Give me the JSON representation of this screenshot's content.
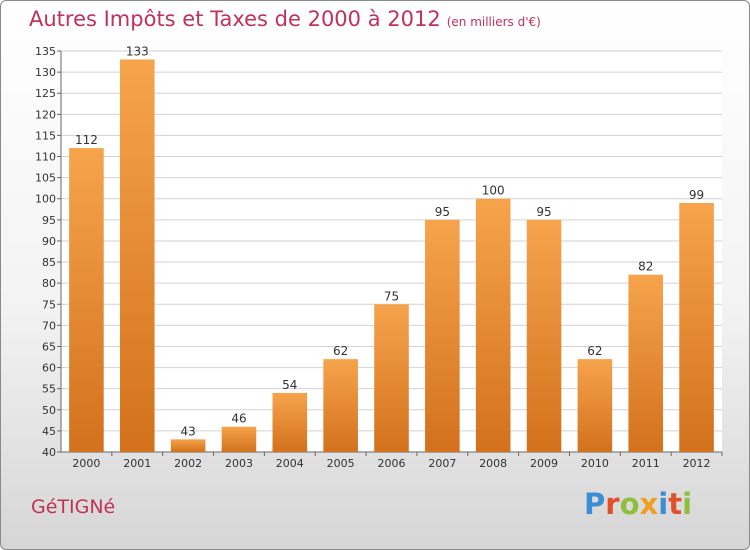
{
  "header": {
    "title": "Autres Impôts et Taxes de 2000 à 2012",
    "subtitle": "(en milliers d'€)"
  },
  "footer": {
    "commune": "GéTIGNé",
    "brand": "Proxiti"
  },
  "colors": {
    "accent": "#c0325c",
    "bar_light": "#f6a44c",
    "bar_dark": "#d3711c",
    "brand_letters": [
      "#3b8ed6",
      "#e0502a",
      "#8dc03c",
      "#f0a020",
      "#3b8ed6",
      "#e0502a",
      "#8dc03c"
    ]
  },
  "chart_data": {
    "type": "bar",
    "title": "Autres Impôts et Taxes de 2000 à 2012",
    "subtitle": "(en milliers d'€)",
    "categories": [
      "2000",
      "2001",
      "2002",
      "2003",
      "2004",
      "2005",
      "2006",
      "2007",
      "2008",
      "2009",
      "2010",
      "2011",
      "2012"
    ],
    "values": [
      112,
      133,
      43,
      46,
      54,
      62,
      75,
      95,
      100,
      95,
      62,
      82,
      99
    ],
    "ylim": [
      40,
      135
    ],
    "yticks": [
      40,
      45,
      50,
      55,
      60,
      65,
      70,
      75,
      80,
      85,
      90,
      95,
      100,
      105,
      110,
      115,
      120,
      125,
      130,
      135
    ],
    "grid": true,
    "xlabel": "",
    "ylabel": ""
  }
}
